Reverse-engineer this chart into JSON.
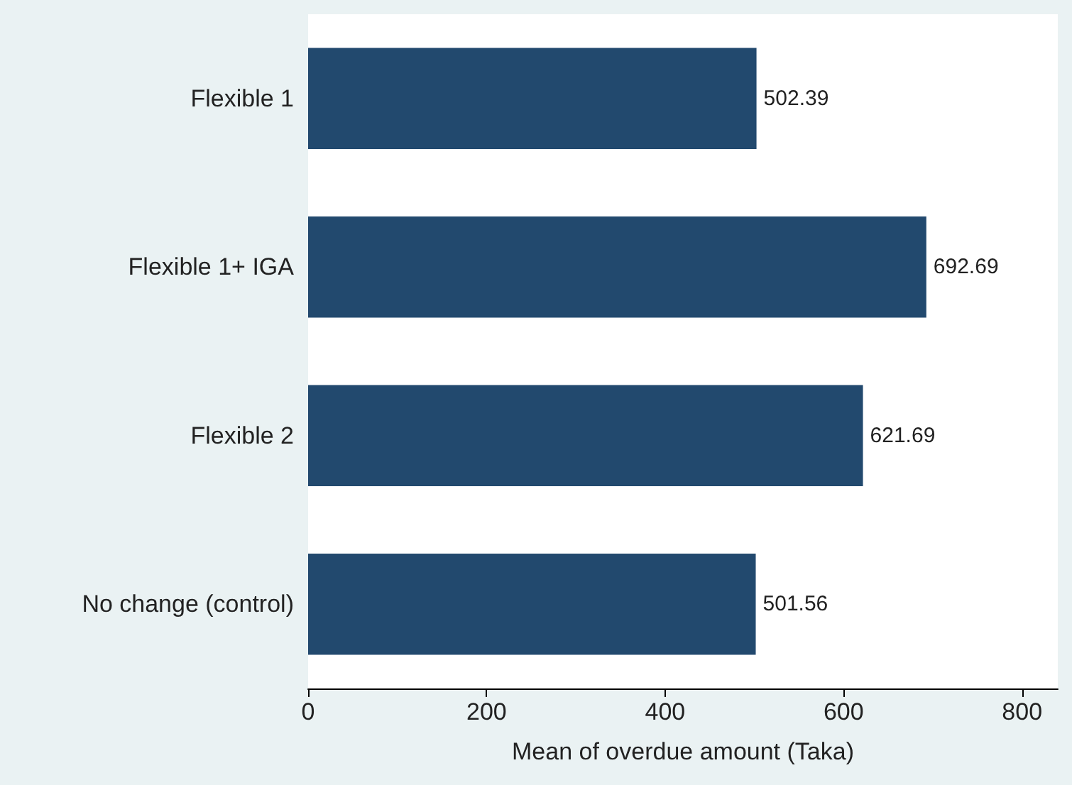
{
  "chart_data": {
    "type": "bar",
    "orientation": "horizontal",
    "categories": [
      "Flexible 1",
      "Flexible 1+ IGA",
      "Flexible 2",
      "No change (control)"
    ],
    "values": [
      502.39,
      692.69,
      621.69,
      501.56
    ],
    "color": "#22496e",
    "data_labels": true,
    "xlabel": "Mean of overdue amount (Taka)",
    "xlim": [
      0,
      840
    ],
    "xticks": [
      0,
      200,
      400,
      600,
      800
    ],
    "grid": false
  }
}
